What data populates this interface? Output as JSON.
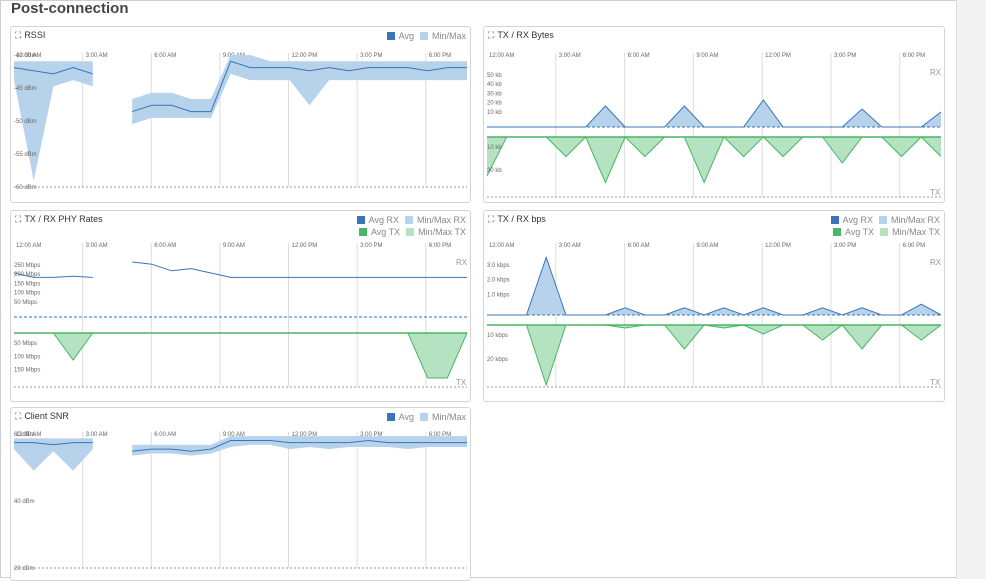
{
  "page": {
    "title": "Post-connection"
  },
  "time_ticks": [
    "12:00 AM",
    "3:00 AM",
    "6:00 AM",
    "9:00 AM",
    "12:00 PM",
    "3:00 PM",
    "6:00 PM"
  ],
  "colors": {
    "avg_rx": "#3a74b9",
    "minmax_rx": "#b7d3ec",
    "avg_tx": "#48b664",
    "minmax_tx": "#b5e2c1"
  },
  "panels": {
    "rssi": {
      "title": "RSSI",
      "legend": [
        "Avg",
        "Min/Max"
      ],
      "ylabels": [
        "-40 dBm",
        "-45 dBm",
        "-50 dBm",
        "-55 dBm",
        "-60 dBm"
      ]
    },
    "bytes": {
      "title": "TX / RX Bytes",
      "rx_label": "RX",
      "tx_label": "TX",
      "ylabels_rx": [
        "50 kb",
        "40 kb",
        "30 kb",
        "20 kb",
        "10 kb"
      ],
      "ylabels_tx": [
        "10 kb",
        "30 kb"
      ]
    },
    "phy": {
      "title": "TX / RX PHY Rates",
      "legend": [
        "Avg RX",
        "Min/Max RX",
        "Avg TX",
        "Min/Max TX"
      ],
      "rx_label": "RX",
      "tx_label": "TX",
      "ylabels_rx": [
        "250 Mbps",
        "200 Mbps",
        "150 Mbps",
        "100 Mbps",
        "50 Mbps"
      ],
      "ylabels_tx": [
        "50 Mbps",
        "100 Mbps",
        "150 Mbps"
      ]
    },
    "bps": {
      "title": "TX / RX bps",
      "legend": [
        "Avg RX",
        "Min/Max RX",
        "Avg TX",
        "Min/Max TX"
      ],
      "rx_label": "RX",
      "tx_label": "TX",
      "ylabels_rx": [
        "3.0 kbps",
        "2.0 kbps",
        "1.0 kbps"
      ],
      "ylabels_tx": [
        "10 kbps",
        "20 kbps"
      ]
    },
    "snr": {
      "title": "Client SNR",
      "legend": [
        "Avg",
        "Min/Max"
      ],
      "ylabels": [
        "60 dBm",
        "40 dBm",
        "20 dBm"
      ]
    }
  },
  "chart_data": [
    {
      "type": "area",
      "panel": "rssi",
      "title": "RSSI",
      "x": [
        0,
        1,
        2,
        3,
        4,
        5,
        6,
        7,
        8,
        9,
        10,
        11,
        12,
        13,
        14,
        15,
        16,
        17,
        18,
        19,
        20,
        21,
        22,
        23
      ],
      "y_unit": "dBm",
      "ylim": [
        -61,
        -40
      ],
      "series": [
        {
          "name": "Avg",
          "values": [
            -42,
            -42.5,
            -43,
            -42,
            -43,
            null,
            -49,
            -48,
            -48,
            -49,
            -49,
            -41,
            -42,
            -42,
            -42,
            -42.5,
            -42,
            -42.5,
            -42,
            -42,
            -42,
            -42.5,
            -42,
            -42
          ]
        },
        {
          "name": "Min/Max",
          "low": [
            -44,
            -60,
            -45,
            -44,
            -45,
            null,
            -51,
            -50,
            -50,
            -50,
            -50,
            -43,
            -44,
            -44,
            -44,
            -48,
            -44,
            -44,
            -44,
            -44,
            -44,
            -44,
            -44,
            -44
          ],
          "high": [
            -41,
            -41,
            -41,
            -41,
            -41,
            null,
            -47,
            -46,
            -46,
            -47,
            -47,
            -40,
            -40,
            -41,
            -41,
            -41,
            -41,
            -41,
            -41,
            -41,
            -41,
            -41,
            -41,
            -41
          ]
        }
      ]
    },
    {
      "type": "area",
      "panel": "bytes",
      "title": "TX / RX Bytes",
      "x": [
        0,
        1,
        2,
        3,
        4,
        5,
        6,
        7,
        8,
        9,
        10,
        11,
        12,
        13,
        14,
        15,
        16,
        17,
        18,
        19,
        20,
        21,
        22,
        23
      ],
      "series": [
        {
          "name": "RX",
          "values": [
            0,
            0,
            0,
            0,
            0,
            0,
            14,
            0,
            0,
            0,
            14,
            0,
            0,
            0,
            18,
            0,
            0,
            0,
            0,
            12,
            0,
            0,
            0,
            10
          ]
        },
        {
          "name": "TX",
          "values": [
            -30,
            0,
            0,
            0,
            -15,
            0,
            -35,
            0,
            -15,
            0,
            0,
            -35,
            0,
            -15,
            0,
            -15,
            0,
            0,
            -20,
            0,
            0,
            -15,
            0,
            -15
          ]
        }
      ]
    },
    {
      "type": "line",
      "panel": "phy",
      "title": "TX / RX PHY Rates",
      "x": [
        0,
        1,
        2,
        3,
        4,
        5,
        6,
        7,
        8,
        9,
        10,
        11,
        12,
        13,
        14,
        15,
        16,
        17,
        18,
        19,
        20,
        21,
        22,
        23
      ],
      "y_unit": "Mbps",
      "series": [
        {
          "name": "Avg RX",
          "values": [
            200,
            180,
            180,
            185,
            180,
            null,
            250,
            240,
            210,
            220,
            200,
            180,
            180,
            180,
            180,
            180,
            180,
            180,
            180,
            180,
            180,
            180,
            180,
            180
          ]
        },
        {
          "name": "Avg TX",
          "values": [
            0,
            0,
            0,
            -60,
            0,
            null,
            0,
            0,
            0,
            0,
            0,
            0,
            0,
            0,
            0,
            0,
            0,
            0,
            0,
            0,
            0,
            -100,
            -100,
            0
          ]
        }
      ]
    },
    {
      "type": "area",
      "panel": "bps",
      "title": "TX / RX bps",
      "x": [
        0,
        1,
        2,
        3,
        4,
        5,
        6,
        7,
        8,
        9,
        10,
        11,
        12,
        13,
        14,
        15,
        16,
        17,
        18,
        19,
        20,
        21,
        22,
        23
      ],
      "y_unit": "kbps",
      "series": [
        {
          "name": "Avg RX",
          "values": [
            0,
            0,
            0,
            3.2,
            0,
            0,
            0,
            0.4,
            0,
            0,
            0.4,
            0,
            0.4,
            0,
            0.4,
            0,
            0,
            0.4,
            0,
            0.4,
            0,
            0,
            0.6,
            0
          ]
        },
        {
          "name": "Avg TX",
          "values": [
            0,
            0,
            0,
            -20,
            0,
            0,
            0,
            -1,
            0,
            0,
            -8,
            0,
            -1,
            0,
            -3,
            0,
            0,
            -5,
            0,
            -8,
            0,
            0,
            -5,
            0
          ]
        }
      ]
    },
    {
      "type": "area",
      "panel": "snr",
      "title": "Client SNR",
      "x": [
        0,
        1,
        2,
        3,
        4,
        5,
        6,
        7,
        8,
        9,
        10,
        11,
        12,
        13,
        14,
        15,
        16,
        17,
        18,
        19,
        20,
        21,
        22,
        23
      ],
      "y_unit": "dBm",
      "ylim": [
        0,
        62
      ],
      "series": [
        {
          "name": "Avg",
          "values": [
            58,
            58,
            57,
            58,
            58,
            null,
            54,
            55,
            55,
            54,
            55,
            59,
            59,
            59,
            58,
            58,
            58,
            58,
            59,
            58,
            58,
            58,
            58,
            58
          ]
        },
        {
          "name": "Min/Max",
          "low": [
            55,
            45,
            54,
            45,
            55,
            null,
            52,
            53,
            53,
            52,
            53,
            56,
            57,
            57,
            55,
            56,
            55,
            56,
            56,
            56,
            55,
            56,
            56,
            56
          ],
          "high": [
            60,
            60,
            60,
            60,
            60,
            null,
            57,
            57,
            57,
            57,
            57,
            61,
            61,
            61,
            61,
            61,
            61,
            61,
            61,
            61,
            61,
            61,
            61,
            61
          ]
        }
      ]
    }
  ]
}
